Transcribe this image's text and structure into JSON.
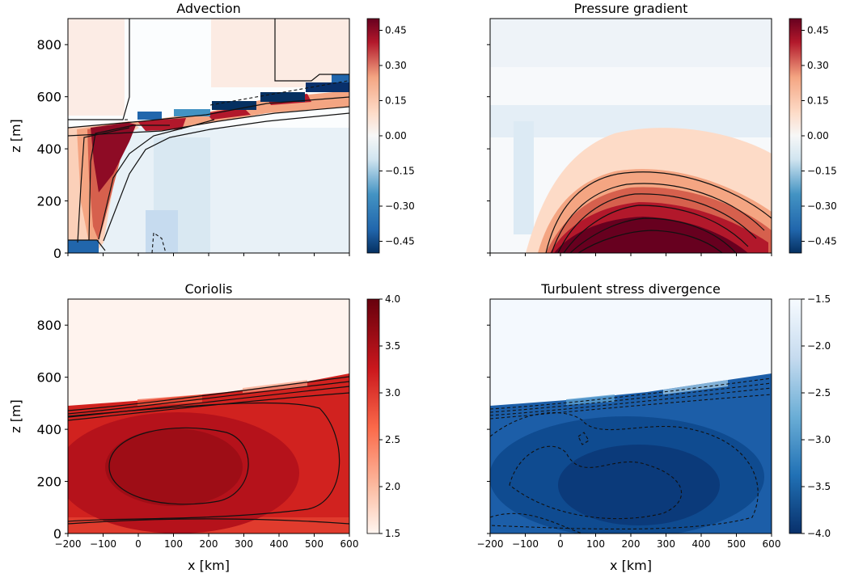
{
  "figure": {
    "xlabel": "x [km]",
    "ylabel": "z [m]",
    "x_ticks": [
      "−200",
      "−100",
      "0",
      "100",
      "200",
      "300",
      "400",
      "500",
      "600"
    ],
    "y_ticks": [
      "0",
      "200",
      "400",
      "600",
      "800"
    ]
  },
  "chart_data": [
    {
      "type": "heatmap",
      "title": "Advection",
      "xlim": [
        -200,
        600
      ],
      "ylim": [
        0,
        900
      ],
      "colormap": "RdBu_r",
      "color_range": [
        -0.5,
        0.5
      ],
      "colorbar_ticks": [
        "0.45",
        "0.30",
        "0.15",
        "0.00",
        "−0.15",
        "−0.30",
        "−0.45"
      ],
      "colorbar_values": [
        0.45,
        0.3,
        0.15,
        0.0,
        -0.15,
        -0.3,
        -0.45
      ],
      "contours": "solid positive, dashed negative",
      "features": [
        {
          "description": "strong positive core",
          "x": [
            -120,
            20
          ],
          "z": [
            270,
            490
          ],
          "value": 0.5
        },
        {
          "description": "positive column near inflow",
          "x": [
            -140,
            -60
          ],
          "z": [
            0,
            490
          ],
          "value": 0.35
        },
        {
          "description": "positive layer along inversion",
          "x": [
            -200,
            600
          ],
          "z": [
            470,
            620
          ],
          "value": 0.15
        },
        {
          "description": "negative stripe at inversion top",
          "x": [
            -80,
            600
          ],
          "z": [
            520,
            650
          ],
          "value": -0.45
        },
        {
          "description": "weak negative plume",
          "x": [
            0,
            150
          ],
          "z": [
            0,
            450
          ],
          "value": -0.1
        },
        {
          "description": "weak positive free troposphere",
          "x": [
            300,
            600
          ],
          "z": [
            650,
            900
          ],
          "value": 0.08
        }
      ]
    },
    {
      "type": "heatmap",
      "title": "Pressure gradient",
      "xlim": [
        -200,
        600
      ],
      "ylim": [
        0,
        900
      ],
      "colormap": "RdBu_r",
      "color_range": [
        -0.5,
        0.5
      ],
      "colorbar_ticks": [
        "0.45",
        "0.30",
        "0.15",
        "0.00",
        "−0.15",
        "−0.30",
        "−0.45"
      ],
      "colorbar_values": [
        0.45,
        0.3,
        0.15,
        0.0,
        -0.15,
        -0.3,
        -0.45
      ],
      "contours": "solid positive",
      "features": [
        {
          "description": "positive dome centred near surface",
          "x_center": 170,
          "z_max": 310,
          "value_max": 0.5
        },
        {
          "description": "weak negative band along inversion",
          "x": [
            -200,
            200
          ],
          "z": [
            450,
            550
          ],
          "value": -0.05
        }
      ]
    },
    {
      "type": "heatmap",
      "title": "Coriolis",
      "xlim": [
        -200,
        600
      ],
      "ylim": [
        0,
        900
      ],
      "colormap": "Reds",
      "color_range": [
        1.5,
        4.0
      ],
      "colorbar_ticks": [
        "4.0",
        "3.5",
        "3.0",
        "2.5",
        "2.0",
        "1.5"
      ],
      "colorbar_values": [
        4.0,
        3.5,
        3.0,
        2.5,
        2.0,
        1.5
      ],
      "contours": "solid",
      "features": [
        {
          "description": "boundary layer maximum",
          "x_center": 80,
          "z_center": 280,
          "value": 3.9
        },
        {
          "description": "boundary layer",
          "x": [
            -200,
            600
          ],
          "z": [
            0,
            490
          ],
          "value": 3.3
        },
        {
          "description": "free troposphere",
          "x": [
            -200,
            600
          ],
          "z": [
            490,
            900
          ],
          "value": 1.55
        }
      ]
    },
    {
      "type": "heatmap",
      "title": "Turbulent stress divergence",
      "xlim": [
        -200,
        600
      ],
      "ylim": [
        0,
        900
      ],
      "colormap": "Blues_r",
      "color_range": [
        -4.0,
        -1.5
      ],
      "colorbar_ticks": [
        "−1.5",
        "−2.0",
        "−2.5",
        "−3.0",
        "−3.5",
        "−4.0"
      ],
      "colorbar_values": [
        -1.5,
        -2.0,
        -2.5,
        -3.0,
        -3.5,
        -4.0
      ],
      "contours": "dashed",
      "features": [
        {
          "description": "strong negative boundary layer",
          "x": [
            -200,
            600
          ],
          "z": [
            0,
            490
          ],
          "value": -3.8
        },
        {
          "description": "minimum",
          "x_center": 180,
          "z_center": 230,
          "value": -3.95
        },
        {
          "description": "free troposphere",
          "x": [
            -200,
            600
          ],
          "z": [
            490,
            900
          ],
          "value": -1.5
        }
      ]
    }
  ]
}
